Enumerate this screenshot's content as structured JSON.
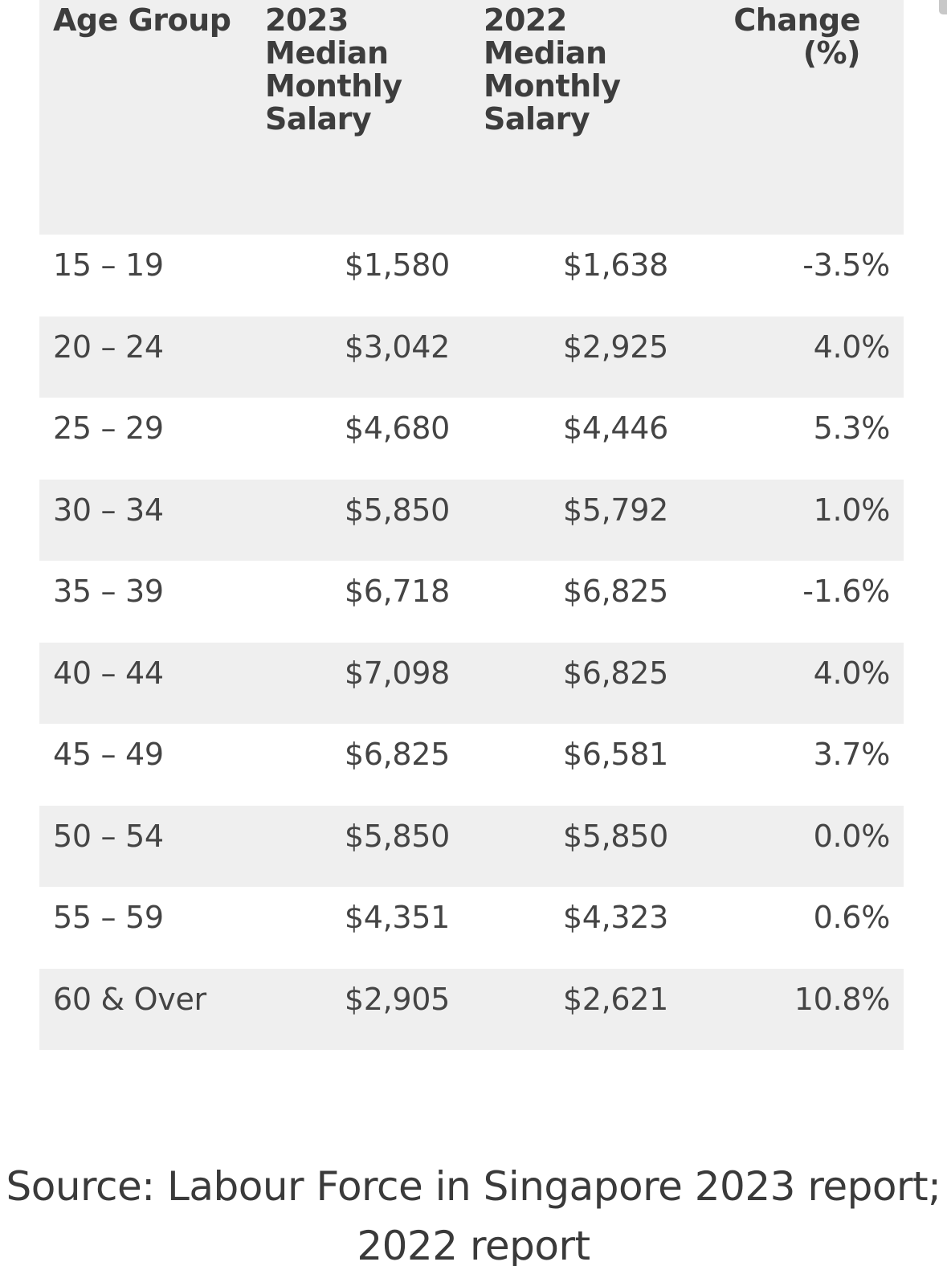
{
  "table": {
    "headers": [
      "Age Group",
      "2023 Median Monthly Salary",
      "2022 Median Monthly Salary",
      "Change (%)"
    ],
    "rows": [
      {
        "age": "15 – 19",
        "y2023": "$1,580",
        "y2022": "$1,638",
        "change": "-3.5%"
      },
      {
        "age": "20 – 24",
        "y2023": "$3,042",
        "y2022": "$2,925",
        "change": "4.0%"
      },
      {
        "age": "25 – 29",
        "y2023": "$4,680",
        "y2022": "$4,446",
        "change": "5.3%"
      },
      {
        "age": "30 – 34",
        "y2023": "$5,850",
        "y2022": "$5,792",
        "change": "1.0%"
      },
      {
        "age": "35 – 39",
        "y2023": "$6,718",
        "y2022": "$6,825",
        "change": "-1.6%"
      },
      {
        "age": "40 – 44",
        "y2023": "$7,098",
        "y2022": "$6,825",
        "change": "4.0%"
      },
      {
        "age": "45 – 49",
        "y2023": "$6,825",
        "y2022": "$6,581",
        "change": "3.7%"
      },
      {
        "age": "50 – 54",
        "y2023": "$5,850",
        "y2022": "$5,850",
        "change": "0.0%"
      },
      {
        "age": "55 – 59",
        "y2023": "$4,351",
        "y2022": "$4,323",
        "change": "0.6%"
      },
      {
        "age": "60 & Over",
        "y2023": "$2,905",
        "y2022": "$2,621",
        "change": "10.8%"
      }
    ]
  },
  "source": {
    "text": "Source: Labour Force in Singapore 2023 report; 2022 report"
  },
  "colors": {
    "stripe": "#efefef",
    "text": "#444444",
    "header_text": "#3d3d3d"
  }
}
